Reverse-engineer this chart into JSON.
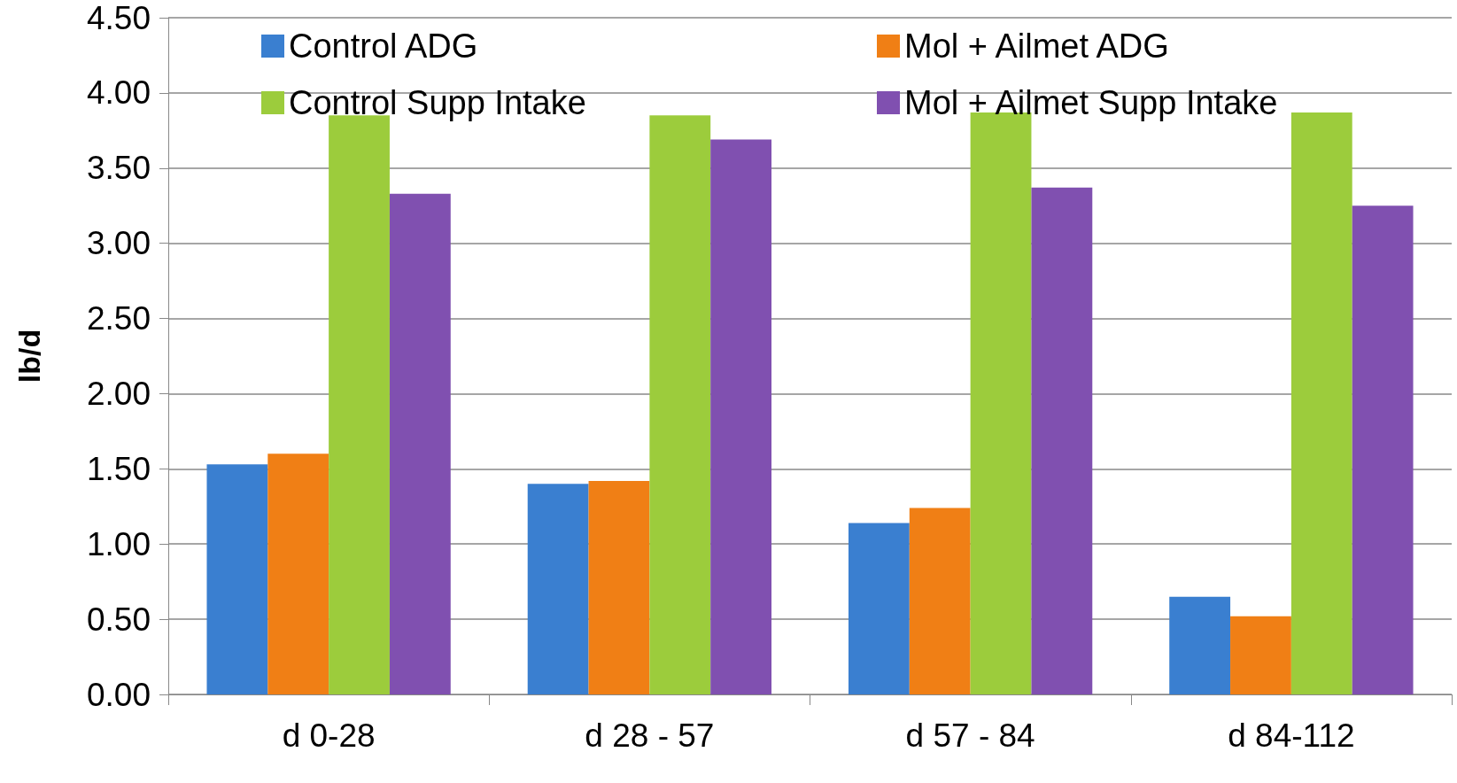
{
  "chart_data": {
    "type": "bar",
    "ylabel": "lb/d",
    "categories": [
      "d 0-28",
      "d 28 - 57",
      "d 57 - 84",
      "d 84-112"
    ],
    "series": [
      {
        "name": "Control ADG",
        "color": "#3a7fd0",
        "values": [
          1.53,
          1.4,
          1.14,
          0.65
        ]
      },
      {
        "name": "Mol + Ailmet ADG",
        "color": "#f07f15",
        "values": [
          1.6,
          1.42,
          1.24,
          0.52
        ]
      },
      {
        "name": "Control Supp Intake",
        "color": "#9ccc3c",
        "values": [
          3.85,
          3.85,
          3.87,
          3.87
        ]
      },
      {
        "name": "Mol + Ailmet Supp Intake",
        "color": "#8050b0",
        "values": [
          3.33,
          3.69,
          3.37,
          3.25
        ]
      }
    ],
    "ylim": [
      0,
      4.5
    ],
    "yticks": [
      {
        "value": 0,
        "label": "0.00"
      },
      {
        "value": 0.5,
        "label": "0.50"
      },
      {
        "value": 1,
        "label": "1.00"
      },
      {
        "value": 1.5,
        "label": "1.50"
      },
      {
        "value": 2,
        "label": "2.00"
      },
      {
        "value": 2.5,
        "label": "2.50"
      },
      {
        "value": 3,
        "label": "3.00"
      },
      {
        "value": 3.5,
        "label": "3.50"
      },
      {
        "value": 4,
        "label": "4.00"
      },
      {
        "value": 4.5,
        "label": "4.50"
      }
    ],
    "grid": "y",
    "legend": "top"
  }
}
